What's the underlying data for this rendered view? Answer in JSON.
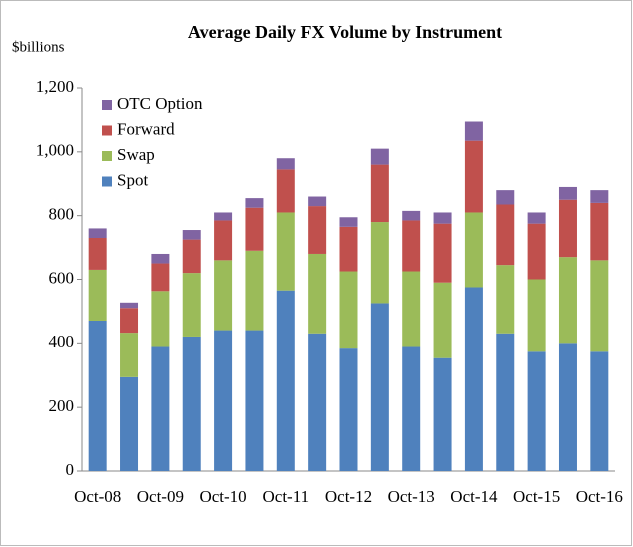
{
  "chart_data": {
    "type": "stacked_bar",
    "title": "Average Daily FX Volume by Instrument",
    "y_label": "$billions",
    "categories": [
      "Oct-08",
      null,
      "Oct-09",
      null,
      "Oct-10",
      null,
      "Oct-11",
      null,
      "Oct-12",
      null,
      "Oct-13",
      null,
      "Oct-14",
      null,
      "Oct-15",
      null,
      "Oct-16"
    ],
    "series": [
      {
        "name": "Spot",
        "color": "#4f81bd",
        "values": [
          470,
          295,
          390,
          420,
          440,
          440,
          565,
          430,
          385,
          525,
          390,
          355,
          575,
          430,
          375,
          400,
          375
        ]
      },
      {
        "name": "Swap",
        "color": "#9bbb59",
        "values": [
          160,
          137,
          173,
          200,
          220,
          250,
          245,
          250,
          240,
          255,
          235,
          235,
          235,
          215,
          225,
          270,
          285
        ]
      },
      {
        "name": "Forward",
        "color": "#c0504d",
        "values": [
          100,
          78,
          87,
          105,
          125,
          135,
          135,
          150,
          140,
          180,
          160,
          185,
          225,
          190,
          175,
          180,
          180
        ]
      },
      {
        "name": "OTC Option",
        "color": "#8064a2",
        "values": [
          30,
          17,
          30,
          30,
          25,
          30,
          35,
          30,
          30,
          50,
          30,
          35,
          60,
          45,
          35,
          40,
          40
        ]
      }
    ],
    "ylim": [
      0,
      1200
    ],
    "yticks": [
      0,
      200,
      400,
      600,
      800,
      {
        "value": 1000,
        "label": "1,000"
      },
      {
        "value": 1200,
        "label": "1,200"
      }
    ],
    "legend": "upper-left"
  }
}
